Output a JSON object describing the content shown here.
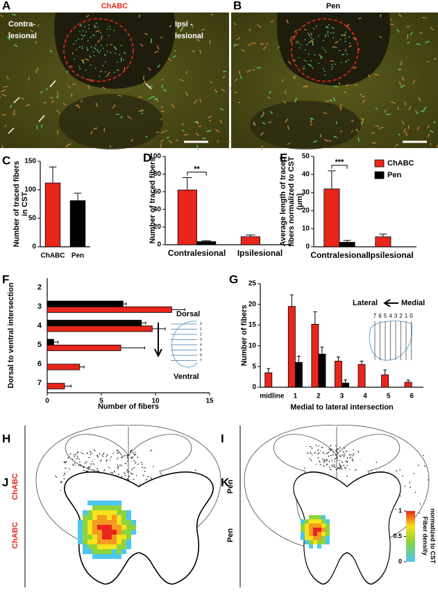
{
  "figure": {
    "A": {
      "label": "A",
      "title": "ChABC",
      "left_text": [
        "Contra-",
        "lesional"
      ],
      "right_text": [
        "Ipsi -",
        "lesional"
      ]
    },
    "B": {
      "label": "B",
      "title": "Pen"
    },
    "H": {
      "label": "H",
      "side": "ChABC"
    },
    "I": {
      "label": "I",
      "side": "Pen"
    },
    "J": {
      "label": "J",
      "side": "ChABC"
    },
    "K": {
      "label": "K",
      "side": "Pen"
    },
    "colorbar": {
      "ticks": [
        1,
        0.5,
        0
      ],
      "title": [
        "Fiber density",
        "normalized to CST"
      ]
    }
  },
  "chart_data": [
    {
      "type": "bar",
      "label": "C",
      "categories": [
        "ChABC",
        "Pen"
      ],
      "values": [
        112,
        81
      ],
      "errors": [
        28,
        13
      ],
      "colors": [
        "#e8261c",
        "#000000"
      ],
      "ylim": [
        0,
        150
      ],
      "yticks": [
        0,
        50,
        100,
        150
      ],
      "ylabel": [
        "Number of traced fibers",
        "in CST"
      ]
    },
    {
      "type": "bar",
      "label": "D",
      "categories": [
        "Contralesional",
        "Ipsilesional"
      ],
      "series": [
        {
          "name": "ChABC",
          "color": "#e8261c",
          "values": [
            62,
            9
          ],
          "errors": [
            14,
            2
          ]
        },
        {
          "name": "Pen",
          "color": "#000000",
          "values": [
            3.5,
            null
          ],
          "errors": [
            1,
            null
          ]
        }
      ],
      "ylim": [
        0,
        100
      ],
      "yticks": [
        0,
        20,
        40,
        60,
        80,
        100
      ],
      "ylabel": [
        "Number of traced fibers"
      ],
      "significance": "**"
    },
    {
      "type": "bar",
      "label": "E",
      "categories": [
        "Contralesional",
        "Ipsilesional"
      ],
      "series": [
        {
          "name": "ChABC",
          "color": "#e8261c",
          "values": [
            32,
            5.5
          ],
          "errors": [
            10,
            1.5
          ]
        },
        {
          "name": "Pen",
          "color": "#000000",
          "values": [
            2.5,
            null
          ],
          "errors": [
            1,
            null
          ]
        }
      ],
      "ylim": [
        0,
        50
      ],
      "yticks": [
        0,
        10,
        20,
        30,
        40,
        50
      ],
      "ylabel": [
        "Average length of traced",
        "fibers normalized to CST",
        "(μm)"
      ],
      "significance": "***",
      "legend": "top-right"
    },
    {
      "type": "bar",
      "orientation": "horizontal",
      "label": "F",
      "categories": [
        "2",
        "3",
        "4",
        "5",
        "6",
        "7"
      ],
      "series": [
        {
          "name": "ChABC",
          "color": "#e8261c",
          "values": [
            null,
            11.5,
            9.7,
            6.8,
            3,
            1.6
          ],
          "errors": [
            null,
            1.2,
            1.2,
            2.2,
            0.4,
            0.6
          ]
        },
        {
          "name": "Pen",
          "color": "#000000",
          "values": [
            null,
            7,
            8.7,
            0.6,
            null,
            null
          ],
          "errors": [
            null,
            0.3,
            0.4,
            0.4,
            null,
            null
          ]
        }
      ],
      "xlim": [
        0,
        15
      ],
      "xticks": [
        0,
        5,
        10,
        15
      ],
      "xlabel": "Number of fibers",
      "ylabel": [
        "Dorsal to ventral intersection"
      ],
      "inset": {
        "top": "Dorsal",
        "bottom": "Ventral",
        "ticks": [
          0,
          1,
          2,
          3,
          4,
          5,
          6,
          7
        ]
      }
    },
    {
      "type": "bar",
      "label": "G",
      "categories": [
        "midline",
        "1",
        "2",
        "3",
        "4",
        "5",
        "6"
      ],
      "series": [
        {
          "name": "ChABC",
          "color": "#e8261c",
          "values": [
            3.5,
            19.5,
            15.2,
            6.3,
            5.5,
            3,
            1.2
          ],
          "errors": [
            1,
            2.8,
            3,
            1,
            0.8,
            1.2,
            0.5
          ]
        },
        {
          "name": "Pen",
          "color": "#000000",
          "values": [
            null,
            6,
            8,
            1,
            null,
            null,
            null
          ],
          "errors": [
            null,
            1.5,
            1.7,
            0.8,
            null,
            null,
            null
          ]
        }
      ],
      "ylim": [
        0,
        25
      ],
      "yticks": [
        0,
        5,
        10,
        15,
        20,
        25
      ],
      "xlabel": "Medial to lateral intersection",
      "ylabel": [
        "Number of fibers"
      ],
      "inset": {
        "left": "Lateral",
        "right": "Medial",
        "ticks": [
          7,
          6,
          5,
          4,
          3,
          2,
          1,
          0
        ]
      }
    }
  ]
}
